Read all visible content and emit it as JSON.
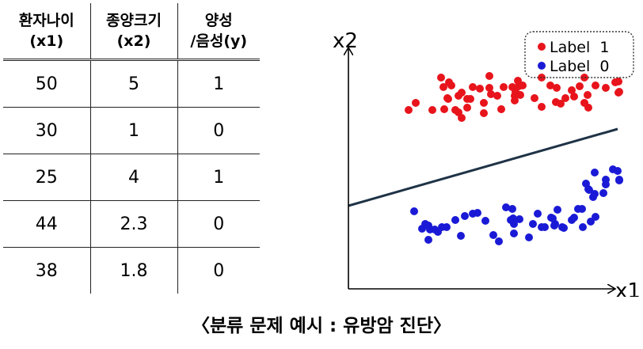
{
  "table": {
    "headers": [
      {
        "line1": "환자나이",
        "line2": "(x1)"
      },
      {
        "line1": "종양크기",
        "line2": "(x2)"
      },
      {
        "line1": "양성",
        "line2": "/음성(y)"
      }
    ],
    "rows": [
      [
        "50",
        "5",
        "1"
      ],
      [
        "30",
        "1",
        "0"
      ],
      [
        "25",
        "4",
        "1"
      ],
      [
        "44",
        "2.3",
        "0"
      ],
      [
        "38",
        "1.8",
        "0"
      ]
    ]
  },
  "caption": "〈분류 문제 예시 : 유방암 진단〉",
  "chart_data": {
    "type": "scatter",
    "xlabel": "x1",
    "ylabel": "x2",
    "grid": false,
    "legend_position": "top-right",
    "series": [
      {
        "name": "Label  1",
        "color": "#e8141c",
        "points": [
          [
            85,
            130
          ],
          [
            76,
            139
          ],
          [
            106,
            139
          ],
          [
            121,
            138
          ],
          [
            125,
            124
          ],
          [
            126,
            125
          ],
          [
            135,
            139
          ],
          [
            143,
            149
          ],
          [
            139,
            142
          ],
          [
            117,
            98
          ],
          [
            120,
            110
          ],
          [
            127,
            104
          ],
          [
            130,
            108
          ],
          [
            139,
            121
          ],
          [
            143,
            117
          ],
          [
            150,
            125
          ],
          [
            150,
            136
          ],
          [
            154,
            125
          ],
          [
            157,
            110
          ],
          [
            166,
            112
          ],
          [
            171,
            143
          ],
          [
            171,
            130
          ],
          [
            178,
            96
          ],
          [
            178,
            111
          ],
          [
            180,
            119
          ],
          [
            188,
            121
          ],
          [
            193,
            138
          ],
          [
            196,
            110
          ],
          [
            207,
            110
          ],
          [
            210,
            121
          ],
          [
            210,
            127
          ],
          [
            211,
            116
          ],
          [
            217,
            120
          ],
          [
            214,
            102
          ],
          [
            215,
            109
          ],
          [
            220,
            108
          ],
          [
            235,
            124
          ],
          [
            244,
            135
          ],
          [
            255,
            108
          ],
          [
            244,
            98
          ],
          [
            262,
            129
          ],
          [
            263,
            111
          ],
          [
            268,
            131
          ],
          [
            274,
            124
          ],
          [
            282,
            114
          ],
          [
            285,
            122
          ],
          [
            292,
            109
          ],
          [
            298,
            130
          ],
          [
            298,
            98
          ],
          [
            302,
            120
          ],
          [
            312,
            108
          ],
          [
            325,
            111
          ],
          [
            337,
            104
          ],
          [
            341,
            117
          ],
          [
            341,
            103
          ],
          [
            342,
            116
          ],
          [
            303,
            136
          ]
        ]
      },
      {
        "name": "Label  0",
        "color": "#1a1ad6",
        "points": [
          [
            83,
            267
          ],
          [
            93,
            289
          ],
          [
            97,
            283
          ],
          [
            103,
            290
          ],
          [
            101,
            303
          ],
          [
            101,
            285
          ],
          [
            109,
            290
          ],
          [
            113,
            293
          ],
          [
            118,
            287
          ],
          [
            124,
            287
          ],
          [
            135,
            278
          ],
          [
            142,
            298
          ],
          [
            147,
            273
          ],
          [
            157,
            270
          ],
          [
            173,
            279
          ],
          [
            163,
            269
          ],
          [
            183,
            297
          ],
          [
            190,
            305
          ],
          [
            199,
            262
          ],
          [
            207,
            264
          ],
          [
            205,
            278
          ],
          [
            208,
            276
          ],
          [
            209,
            283
          ],
          [
            209,
            295
          ],
          [
            216,
            277
          ],
          [
            228,
            300
          ],
          [
            233,
            283
          ],
          [
            239,
            270
          ],
          [
            244,
            287
          ],
          [
            248,
            287
          ],
          [
            256,
            275
          ],
          [
            264,
            265
          ],
          [
            258,
            276
          ],
          [
            261,
            283
          ],
          [
            260,
            285
          ],
          [
            270,
            287
          ],
          [
            272,
            288
          ],
          [
            282,
            278
          ],
          [
            285,
            275
          ],
          [
            290,
            264
          ],
          [
            295,
            264
          ],
          [
            296,
            287
          ],
          [
            306,
            280
          ],
          [
            312,
            274
          ],
          [
            300,
            232
          ],
          [
            303,
            239
          ],
          [
            311,
            218
          ],
          [
            311,
            245
          ],
          [
            309,
            249
          ],
          [
            304,
            240
          ],
          [
            322,
            244
          ],
          [
            325,
            227
          ],
          [
            325,
            233
          ],
          [
            334,
            214
          ],
          [
            340,
            216
          ],
          [
            342,
            227
          ],
          [
            342,
            228
          ]
        ]
      }
    ],
    "decision_line": {
      "x": [
        0,
        340
      ],
      "y": [
        260,
        163
      ]
    }
  }
}
